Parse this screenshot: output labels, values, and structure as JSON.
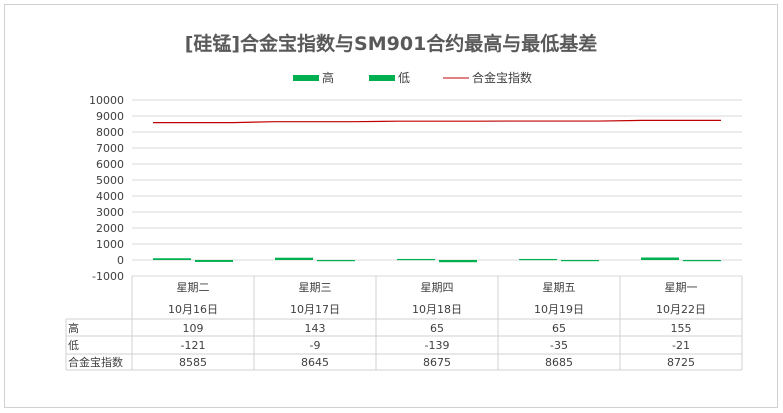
{
  "chart_data": {
    "type": "bar",
    "title": "[硅锰]合金宝指数与SM901合约最高与最低基差",
    "categories": [
      "星期二",
      "星期三",
      "星期四",
      "星期五",
      "星期一"
    ],
    "dates": [
      "10月16日",
      "10月17日",
      "10月18日",
      "10月19日",
      "10月22日"
    ],
    "series": [
      {
        "name": "高",
        "kind": "bar",
        "color": "#00b050",
        "values": [
          109,
          143,
          65,
          65,
          155
        ]
      },
      {
        "name": "低",
        "kind": "bar",
        "color": "#00b050",
        "values": [
          -121,
          -9,
          -139,
          -35,
          -21
        ]
      },
      {
        "name": "合金宝指数",
        "kind": "line",
        "color": "#c00000",
        "values": [
          8585,
          8645,
          8675,
          8685,
          8725
        ]
      }
    ],
    "ylim": [
      -1000,
      10000
    ],
    "yticks": [
      10000,
      9000,
      8000,
      7000,
      6000,
      5000,
      4000,
      3000,
      2000,
      1000,
      0,
      -1000
    ],
    "legend_position": "top",
    "grid": true,
    "data_table": true
  }
}
